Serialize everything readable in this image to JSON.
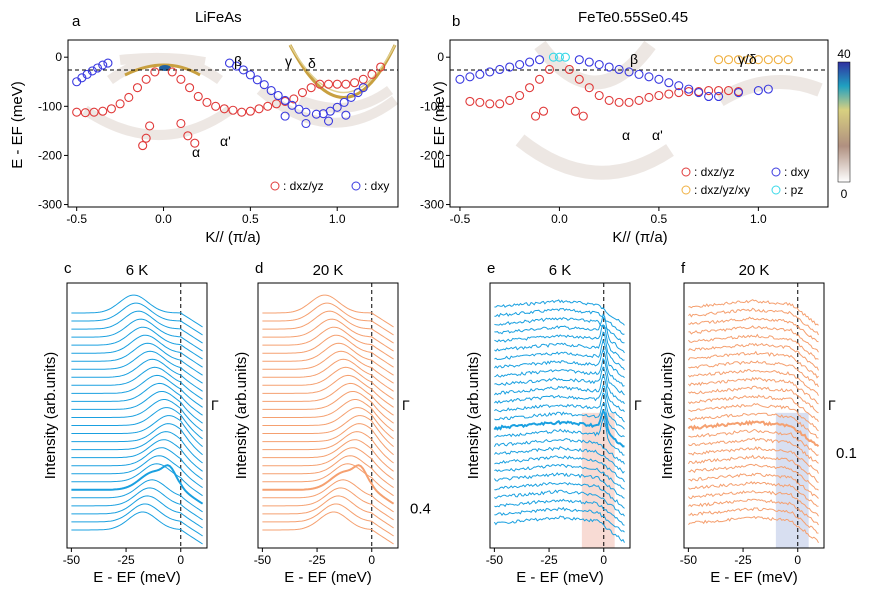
{
  "colors": {
    "red": "#e03a3a",
    "blue": "#3a3ae0",
    "orange": "#f0b040",
    "cyan": "#38d8e8",
    "edc_blue": "#1aa0e0",
    "edc_orange": "#f5a070",
    "gold": "#c8a040"
  },
  "chart_data": [
    {
      "type": "scatter",
      "panel": "a",
      "title": "LiFeAs",
      "xlabel": "K// (π/a)",
      "ylabel": "E - EF (meV)",
      "xlim": [
        -0.55,
        1.35
      ],
      "ylim": [
        -305,
        35
      ],
      "xticks": [
        "-0.5",
        "0.0",
        "0.5",
        "1.0"
      ],
      "yticks": [
        "0",
        "-100",
        "-200",
        "-300"
      ],
      "band_labels": [
        "α",
        "α'",
        "β",
        "γ",
        "δ"
      ],
      "legend": [
        ": dxz/yz",
        ": dxy"
      ],
      "series": [
        {
          "name": "dxz/yz",
          "points": [
            [
              -0.5,
              -112
            ],
            [
              -0.45,
              -113
            ],
            [
              -0.4,
              -112
            ],
            [
              -0.35,
              -110
            ],
            [
              -0.3,
              -105
            ],
            [
              -0.25,
              -95
            ],
            [
              -0.2,
              -82
            ],
            [
              -0.15,
              -62
            ],
            [
              -0.1,
              -45
            ],
            [
              -0.05,
              -30
            ],
            [
              0.05,
              -30
            ],
            [
              0.1,
              -45
            ],
            [
              0.15,
              -62
            ],
            [
              0.2,
              -80
            ],
            [
              0.25,
              -92
            ],
            [
              0.3,
              -100
            ],
            [
              0.35,
              -105
            ],
            [
              0.4,
              -108
            ],
            [
              0.45,
              -112
            ],
            [
              0.5,
              -110
            ],
            [
              0.55,
              -105
            ],
            [
              0.6,
              -100
            ],
            [
              0.65,
              -95
            ],
            [
              0.7,
              -90
            ],
            [
              0.75,
              -85
            ],
            [
              0.8,
              -72
            ],
            [
              0.85,
              -62
            ],
            [
              0.9,
              -55
            ],
            [
              0.95,
              -55
            ],
            [
              1.0,
              -55
            ],
            [
              1.05,
              -55
            ],
            [
              1.1,
              -52
            ],
            [
              1.15,
              -45
            ],
            [
              1.2,
              -35
            ],
            [
              1.25,
              -20
            ],
            [
              -0.08,
              -140
            ],
            [
              -0.1,
              -165
            ],
            [
              -0.12,
              -180
            ],
            [
              0.1,
              -135
            ],
            [
              0.14,
              -160
            ],
            [
              0.18,
              -175
            ]
          ]
        },
        {
          "name": "dxy",
          "points": [
            [
              -0.5,
              -50
            ],
            [
              -0.47,
              -42
            ],
            [
              -0.44,
              -35
            ],
            [
              -0.41,
              -28
            ],
            [
              -0.38,
              -22
            ],
            [
              -0.35,
              -16
            ],
            [
              -0.32,
              -12
            ],
            [
              0.38,
              -12
            ],
            [
              0.42,
              -18
            ],
            [
              0.46,
              -26
            ],
            [
              0.5,
              -36
            ],
            [
              0.54,
              -46
            ],
            [
              0.58,
              -56
            ],
            [
              0.62,
              -68
            ],
            [
              0.66,
              -78
            ],
            [
              0.7,
              -88
            ],
            [
              0.74,
              -98
            ],
            [
              0.78,
              -106
            ],
            [
              0.82,
              -112
            ],
            [
              0.88,
              -116
            ],
            [
              0.92,
              -115
            ],
            [
              0.96,
              -110
            ],
            [
              1.0,
              -102
            ],
            [
              1.04,
              -92
            ],
            [
              1.08,
              -82
            ],
            [
              1.12,
              -72
            ],
            [
              1.15,
              -62
            ],
            [
              0.7,
              -120
            ],
            [
              0.82,
              -135
            ],
            [
              0.95,
              -130
            ],
            [
              1.05,
              -118
            ]
          ]
        }
      ]
    },
    {
      "type": "scatter",
      "panel": "b",
      "title": "FeTe0.55Se0.45",
      "xlabel": "K// (π/a)",
      "ylabel": "E - EF (meV)",
      "xlim": [
        -0.55,
        1.35
      ],
      "ylim": [
        -305,
        35
      ],
      "xticks": [
        "-0.5",
        "0.0",
        "0.5",
        "1.0"
      ],
      "yticks": [
        "0",
        "-100",
        "-200",
        "-300"
      ],
      "band_labels": [
        "α",
        "α'",
        "β",
        "γ/δ"
      ],
      "colorbar_ticks": [
        "40",
        "0"
      ],
      "legend": [
        ": dxz/yz",
        ": dxy",
        ": dxz/yz/xy",
        ": pz"
      ],
      "series": [
        {
          "name": "dxz/yz",
          "points": [
            [
              -0.45,
              -90
            ],
            [
              -0.4,
              -92
            ],
            [
              -0.35,
              -95
            ],
            [
              -0.3,
              -95
            ],
            [
              -0.25,
              -88
            ],
            [
              -0.2,
              -78
            ],
            [
              -0.15,
              -62
            ],
            [
              -0.1,
              -45
            ],
            [
              -0.05,
              -25
            ],
            [
              0.05,
              -25
            ],
            [
              0.1,
              -45
            ],
            [
              0.15,
              -62
            ],
            [
              0.2,
              -78
            ],
            [
              0.25,
              -88
            ],
            [
              0.3,
              -92
            ],
            [
              0.35,
              -92
            ],
            [
              0.4,
              -88
            ],
            [
              0.45,
              -82
            ],
            [
              0.5,
              -78
            ],
            [
              0.55,
              -75
            ],
            [
              0.6,
              -72
            ],
            [
              0.65,
              -70
            ],
            [
              0.7,
              -70
            ],
            [
              0.75,
              -68
            ],
            [
              0.8,
              -68
            ],
            [
              0.85,
              -68
            ],
            [
              0.9,
              -70
            ],
            [
              -0.12,
              -120
            ],
            [
              -0.08,
              -110
            ],
            [
              0.08,
              -110
            ],
            [
              0.12,
              -120
            ]
          ]
        },
        {
          "name": "dxy",
          "points": [
            [
              -0.5,
              -45
            ],
            [
              -0.45,
              -40
            ],
            [
              -0.4,
              -35
            ],
            [
              -0.35,
              -30
            ],
            [
              -0.3,
              -25
            ],
            [
              -0.25,
              -20
            ],
            [
              -0.2,
              -15
            ],
            [
              -0.15,
              -10
            ],
            [
              -0.1,
              -5
            ],
            [
              0.1,
              -5
            ],
            [
              0.15,
              -10
            ],
            [
              0.2,
              -15
            ],
            [
              0.25,
              -20
            ],
            [
              0.3,
              -25
            ],
            [
              0.35,
              -30
            ],
            [
              0.4,
              -35
            ],
            [
              0.45,
              -40
            ],
            [
              0.5,
              -45
            ],
            [
              0.55,
              -52
            ],
            [
              0.6,
              -58
            ],
            [
              0.65,
              -65
            ],
            [
              0.7,
              -72
            ],
            [
              0.75,
              -80
            ],
            [
              0.8,
              -80
            ],
            [
              0.9,
              -72
            ],
            [
              1.0,
              -68
            ],
            [
              1.05,
              -65
            ]
          ]
        },
        {
          "name": "dxz/yz/xy",
          "points": [
            [
              0.8,
              -5
            ],
            [
              0.85,
              -5
            ],
            [
              0.9,
              -5
            ],
            [
              0.95,
              -5
            ],
            [
              1.0,
              -5
            ],
            [
              1.05,
              -5
            ],
            [
              1.1,
              -5
            ],
            [
              1.15,
              -5
            ]
          ]
        },
        {
          "name": "pz",
          "points": [
            [
              -0.03,
              0
            ],
            [
              0.0,
              0
            ],
            [
              0.03,
              0
            ]
          ]
        }
      ]
    },
    {
      "type": "line",
      "panel": "c",
      "title": "6 K",
      "xlabel": "E - EF (meV)",
      "ylabel": "Intensity (arb.units)",
      "xlim": [
        -52,
        12
      ],
      "xticks": [
        "-50",
        "-25",
        "0"
      ],
      "marker": "Γ",
      "n_curves": 28
    },
    {
      "type": "line",
      "panel": "d",
      "title": "20 K",
      "xlabel": "E - EF (meV)",
      "ylabel": "Intensity (arb.units)",
      "xlim": [
        -52,
        12
      ],
      "xticks": [
        "-50",
        "-25",
        "0"
      ],
      "marker": "Γ",
      "scale_label": "0.4",
      "n_curves": 28
    },
    {
      "type": "line",
      "panel": "e",
      "title": "6 K",
      "xlabel": "E - EF (meV)",
      "ylabel": "Intensity (arb.units)",
      "xlim": [
        -52,
        12
      ],
      "xticks": [
        "-50",
        "-25",
        "0"
      ],
      "marker": "Γ",
      "n_curves": 26,
      "shaded_range": [
        -10,
        5
      ]
    },
    {
      "type": "line",
      "panel": "f",
      "title": "20 K",
      "xlabel": "E - EF (meV)",
      "ylabel": "Intensity (arb.units)",
      "xlim": [
        -52,
        12
      ],
      "xticks": [
        "-50",
        "-25",
        "0"
      ],
      "marker": "Γ",
      "scale_label": "0.1",
      "n_curves": 26,
      "shaded_range": [
        -10,
        5
      ]
    }
  ]
}
